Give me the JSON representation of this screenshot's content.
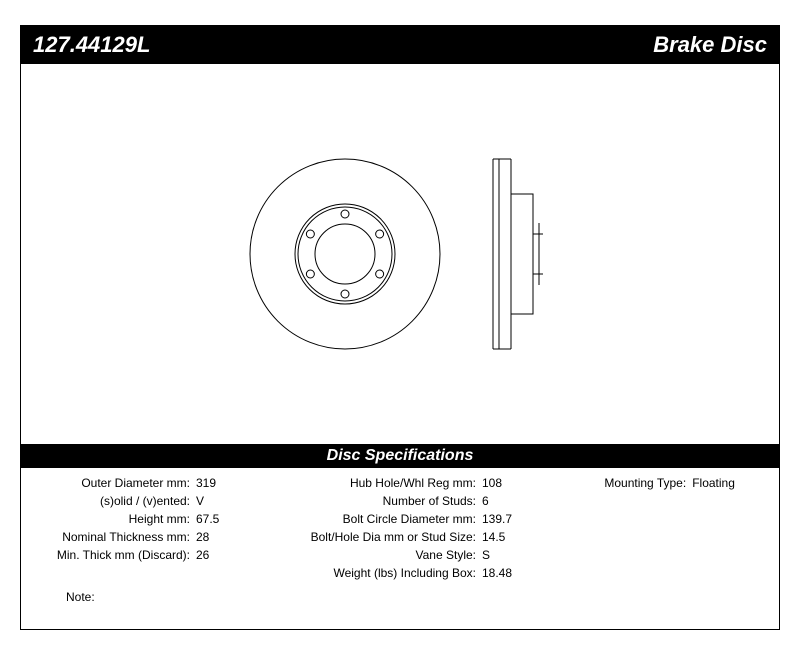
{
  "header": {
    "part_number": "127.44129L",
    "title": "Brake Disc"
  },
  "spec_header": "Disc Specifications",
  "specs": {
    "col1": [
      {
        "label": "Outer Diameter mm:",
        "value": "319"
      },
      {
        "label": "(s)olid / (v)ented:",
        "value": "V"
      },
      {
        "label": "Height mm:",
        "value": "67.5"
      },
      {
        "label": "Nominal Thickness mm:",
        "value": "28"
      },
      {
        "label": "Min. Thick mm (Discard):",
        "value": "26"
      }
    ],
    "col2": [
      {
        "label": "Hub Hole/Whl Reg mm:",
        "value": "108"
      },
      {
        "label": "Number of Studs:",
        "value": "6"
      },
      {
        "label": "Bolt Circle Diameter mm:",
        "value": "139.7"
      },
      {
        "label": "Bolt/Hole Dia mm or Stud Size:",
        "value": "14.5"
      },
      {
        "label": "Vane Style:",
        "value": "S"
      },
      {
        "label": "Weight (lbs) Including Box:",
        "value": "18.48"
      }
    ],
    "col3": [
      {
        "label": "Mounting Type:",
        "value": "Floating"
      }
    ]
  },
  "note_label": "Note:",
  "note_value": "",
  "diagram": {
    "stroke": "#000000",
    "stroke_width": 1,
    "background": "#ffffff",
    "front": {
      "outer_r": 95,
      "inner_ring_r": 50,
      "hub_r": 30,
      "stud_circle_r": 40,
      "stud_r": 4,
      "stud_count": 6
    },
    "side": {
      "width": 60,
      "height": 190
    }
  }
}
